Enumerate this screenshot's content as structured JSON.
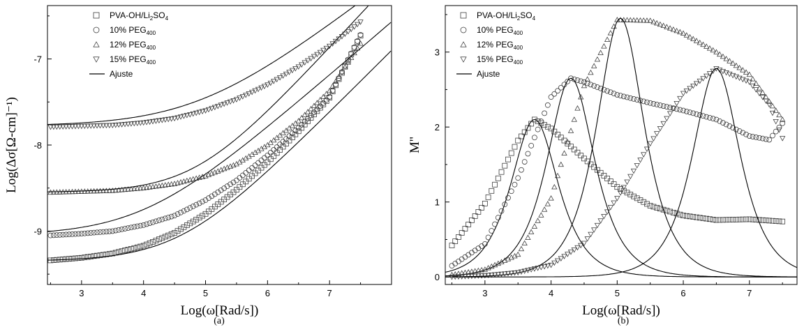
{
  "chart_data": [
    {
      "type": "scatter",
      "panel_label": "(a)",
      "xlabel": "Log(ω[Rad/s])",
      "ylabel": "Log(Δσ[Ω-cm]⁻¹)",
      "xlim": [
        2.45,
        8.0
      ],
      "ylim": [
        -9.62,
        -6.38
      ],
      "xticks": [
        3,
        4,
        5,
        6,
        7
      ],
      "yticks": [
        -9,
        -8,
        -7
      ],
      "grid": false,
      "legend_position": "top-left",
      "fit_label": "Ajuste",
      "series": [
        {
          "name": "PVA-OH/Li2SO4",
          "legend_main": "PVA-OH/Li",
          "legend_sub": "2",
          "legend_tail": "SO",
          "legend_sub2": "4",
          "marker": "square",
          "dc": -9.35,
          "wc": 4.6,
          "n": 0.72,
          "xmin": 2.5,
          "xmax": 7.5,
          "x": [
            2.5,
            3.0,
            3.5,
            4.0,
            4.5,
            5.0,
            5.5,
            6.0,
            6.5,
            7.0,
            7.5
          ],
          "y": [
            -9.34,
            -9.31,
            -9.26,
            -9.17,
            -9.02,
            -8.8,
            -8.52,
            -8.2,
            -7.84,
            -7.45,
            -6.73
          ]
        },
        {
          "name": "10% PEG400",
          "legend_main": "10% PEG",
          "legend_sub": "400",
          "marker": "circle",
          "dc": -9.05,
          "wc": 4.0,
          "n": 0.62,
          "xmin": 2.5,
          "xmax": 7.5,
          "x": [
            2.5,
            3.0,
            3.5,
            4.0,
            4.5,
            5.0,
            5.5,
            6.0,
            6.5,
            7.0,
            7.5
          ],
          "y": [
            -9.05,
            -9.03,
            -9.0,
            -8.93,
            -8.82,
            -8.64,
            -8.41,
            -8.12,
            -7.8,
            -7.44,
            -6.72
          ]
        },
        {
          "name": "12% PEG400",
          "legend_main": "12% PEG",
          "legend_sub": "400",
          "marker": "triangle-up",
          "dc": -8.55,
          "wc": 4.85,
          "n": 0.78,
          "xmin": 2.5,
          "xmax": 7.5,
          "x": [
            2.5,
            3.0,
            3.5,
            4.0,
            4.5,
            5.0,
            5.5,
            6.0,
            6.5,
            7.0,
            7.5
          ],
          "y": [
            -8.55,
            -8.54,
            -8.53,
            -8.5,
            -8.45,
            -8.36,
            -8.22,
            -8.0,
            -7.72,
            -7.37,
            -6.82
          ]
        },
        {
          "name": "15% PEG400",
          "legend_main": "15% PEG",
          "legend_sub": "400",
          "marker": "triangle-down",
          "dc": -7.78,
          "wc": 4.9,
          "n": 0.55,
          "xmin": 2.5,
          "xmax": 7.5,
          "x": [
            2.5,
            3.0,
            3.5,
            4.0,
            4.5,
            5.0,
            5.5,
            6.0,
            6.5,
            7.0,
            7.5
          ],
          "y": [
            -7.79,
            -7.78,
            -7.77,
            -7.74,
            -7.69,
            -7.6,
            -7.47,
            -7.3,
            -7.09,
            -6.85,
            -6.57
          ]
        }
      ]
    },
    {
      "type": "scatter",
      "panel_label": "(b)",
      "xlabel": "Log(ω[Rad/s])",
      "ylabel": "M''",
      "xlim": [
        2.4,
        7.72
      ],
      "ylim": [
        -0.1,
        3.62
      ],
      "xticks": [
        3,
        4,
        5,
        6,
        7
      ],
      "yticks": [
        0,
        1,
        2,
        3
      ],
      "grid": false,
      "legend_position": "top-left",
      "fit_label": "Ajuste",
      "series": [
        {
          "name": "PVA-OH/Li2SO4",
          "legend_main": "PVA-OH/Li",
          "legend_sub": "2",
          "legend_tail": "SO",
          "legend_sub2": "4",
          "marker": "square",
          "peak": 2.1,
          "xpeak": 3.75,
          "xmin": 2.5,
          "xmax": 7.5,
          "x": [
            2.5,
            3.0,
            3.5,
            3.75,
            4.0,
            4.5,
            5.0,
            5.5,
            6.0,
            6.5,
            7.0,
            7.5
          ],
          "y": [
            0.42,
            0.98,
            1.82,
            2.1,
            1.98,
            1.58,
            1.2,
            0.95,
            0.82,
            0.76,
            0.77,
            0.74
          ]
        },
        {
          "name": "10% PEG400",
          "legend_main": "10% PEG",
          "legend_sub": "400",
          "marker": "circle",
          "peak": 2.65,
          "xpeak": 4.3,
          "xmin": 2.5,
          "xmax": 7.5,
          "x": [
            2.5,
            3.0,
            3.5,
            4.0,
            4.3,
            4.5,
            5.0,
            5.5,
            6.0,
            6.5,
            7.0,
            7.3,
            7.5
          ],
          "y": [
            0.15,
            0.44,
            1.32,
            2.4,
            2.65,
            2.6,
            2.43,
            2.32,
            2.22,
            2.1,
            1.88,
            1.83,
            2.05
          ]
        },
        {
          "name": "12% PEG400",
          "legend_main": "12% PEG",
          "legend_sub": "400",
          "marker": "triangle-up",
          "peak": 3.45,
          "xpeak": 5.05,
          "xmin": 2.5,
          "xmax": 7.5,
          "x": [
            2.5,
            3.0,
            3.5,
            4.0,
            4.5,
            5.0,
            5.5,
            6.0,
            6.5,
            7.0,
            7.5
          ],
          "y": [
            0.03,
            0.1,
            0.3,
            1.05,
            2.55,
            3.43,
            3.42,
            3.25,
            3.0,
            2.7,
            2.1
          ]
        },
        {
          "name": "15% PEG400",
          "legend_main": "15% PEG",
          "legend_sub": "400",
          "marker": "triangle-down",
          "peak": 2.78,
          "xpeak": 6.5,
          "xmin": 2.5,
          "xmax": 7.5,
          "x": [
            2.5,
            3.0,
            3.5,
            4.0,
            4.5,
            5.0,
            5.5,
            6.0,
            6.5,
            7.0,
            7.3,
            7.5
          ],
          "y": [
            0.0,
            0.02,
            0.06,
            0.16,
            0.45,
            1.05,
            1.78,
            2.45,
            2.78,
            2.6,
            2.3,
            1.85
          ]
        }
      ]
    }
  ]
}
